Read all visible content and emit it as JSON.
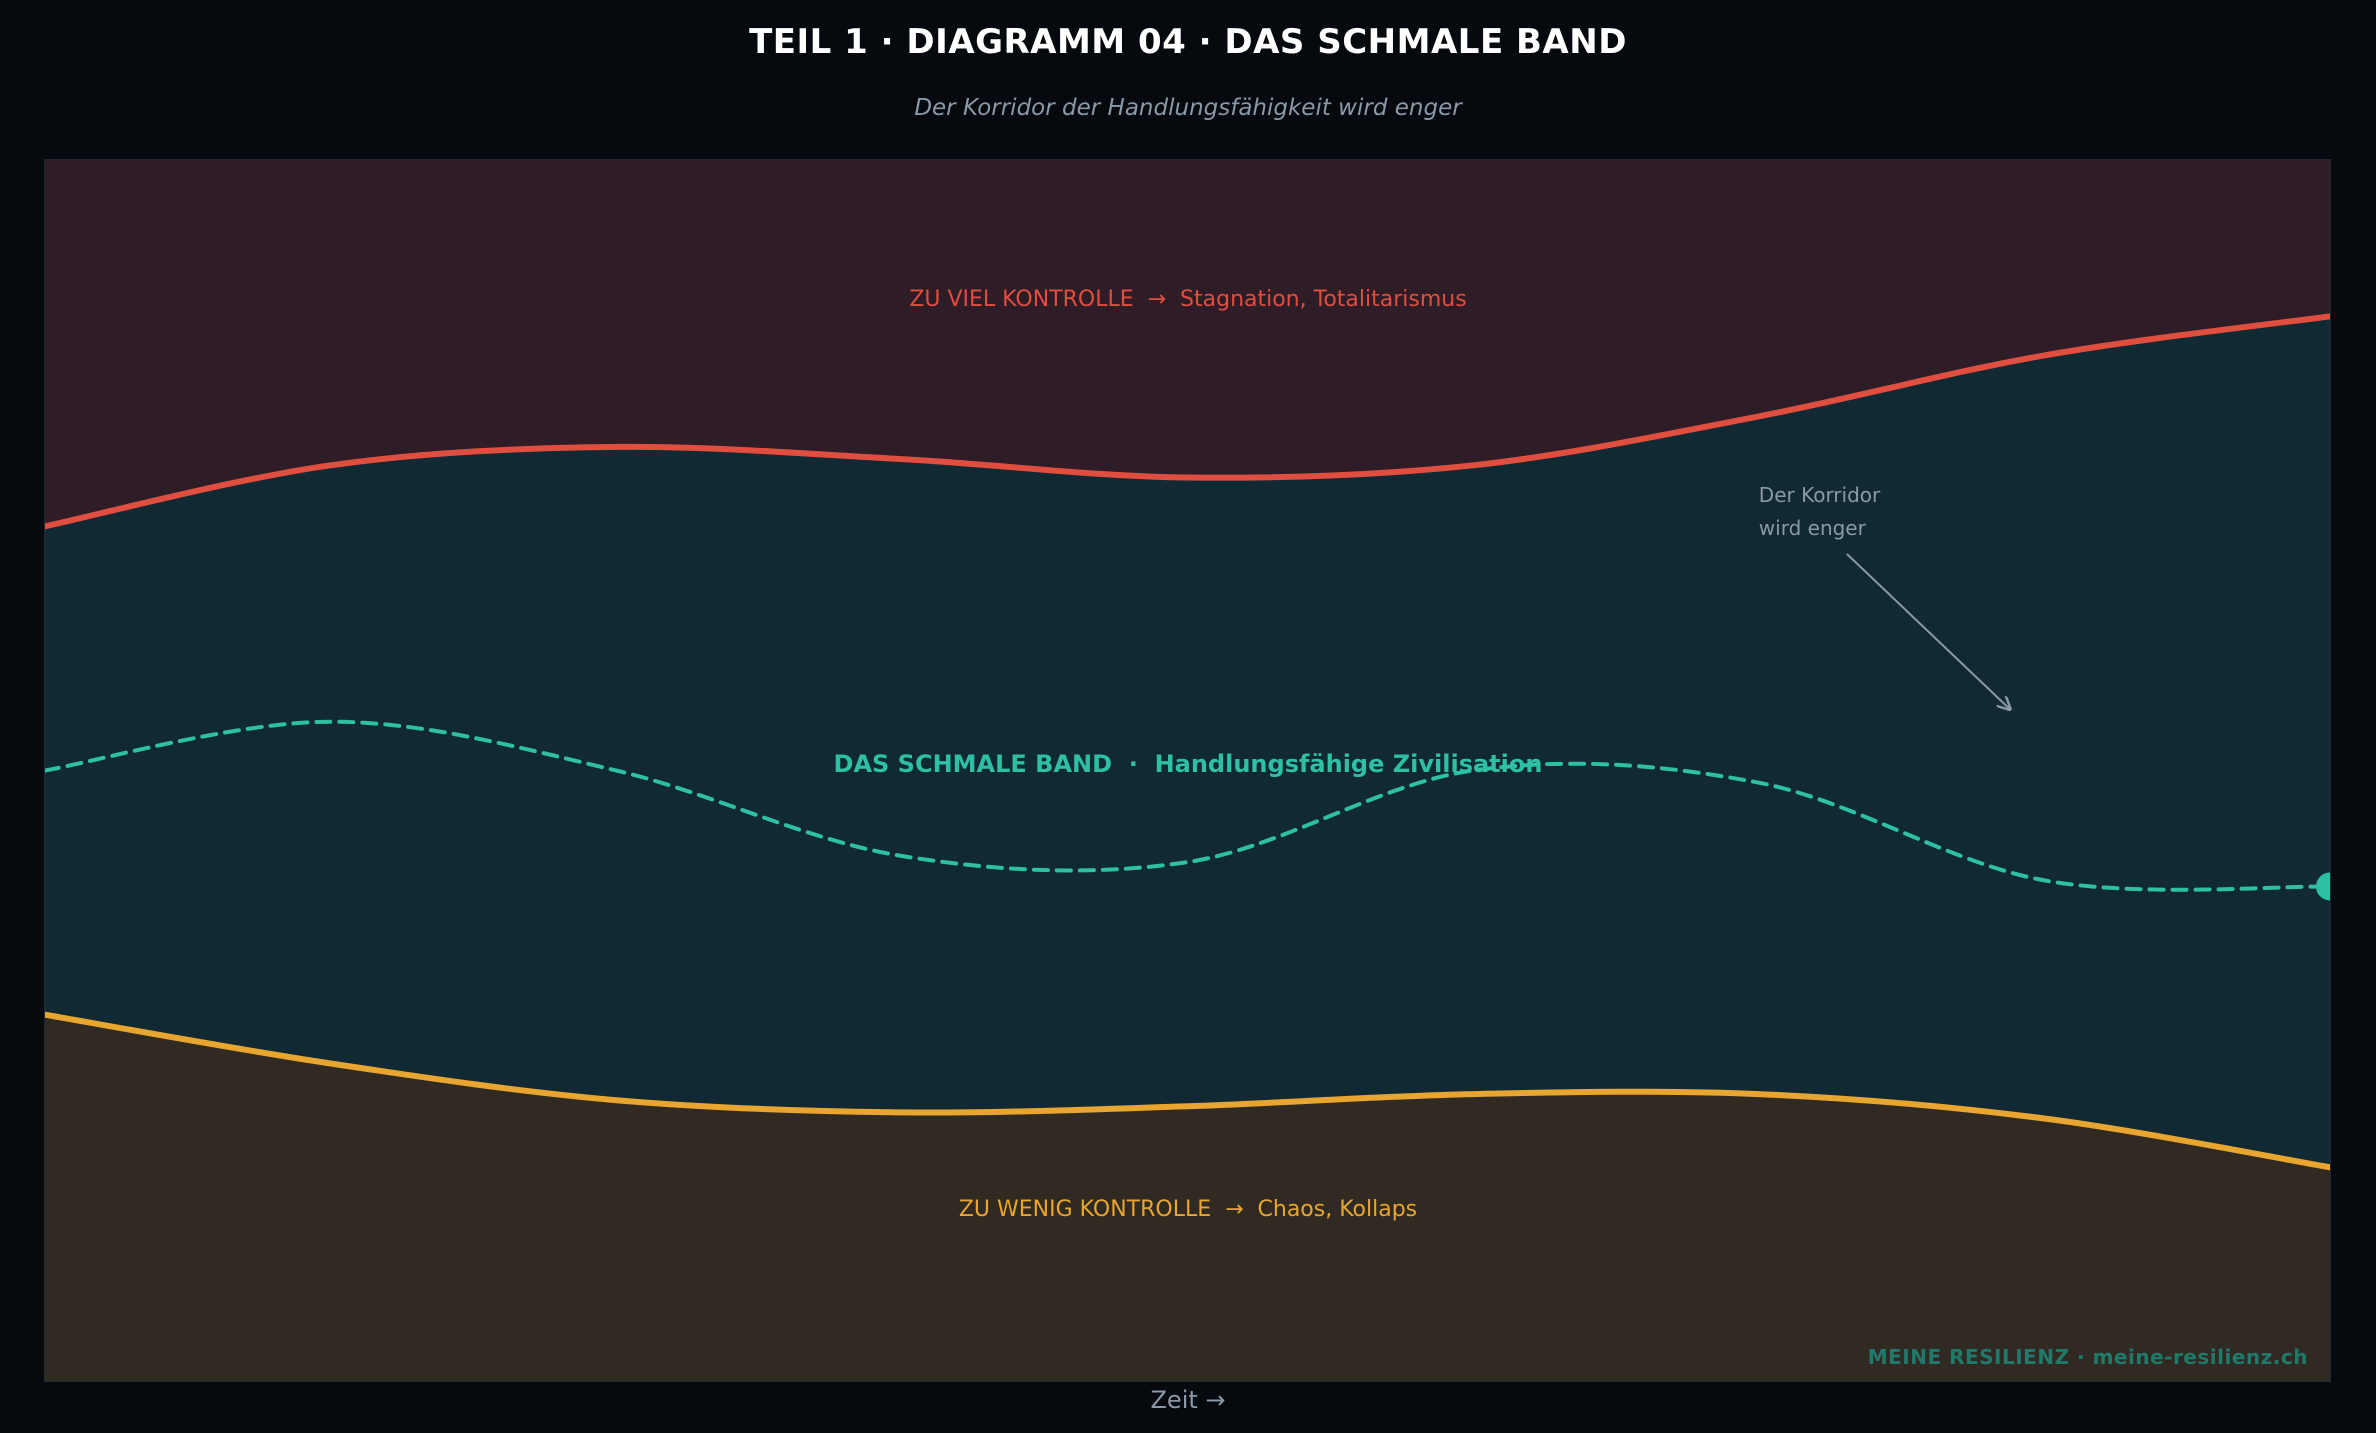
{
  "header": {
    "title": "TEIL 1 · DIAGRAMM 04  ·  DAS SCHMALE BAND",
    "subtitle": "Der Korridor der Handlungsfähigkeit wird enger"
  },
  "footer": {
    "brand": "MEINE RESILIENZ  ·  meine-resilienz.ch"
  },
  "colors": {
    "background": "#060a0e",
    "upper_zone": "#2e1c26",
    "band_zone": "#112933",
    "lower_zone": "#302a23",
    "upper_line": "#e04e3f",
    "lower_line": "#e8a52f",
    "path_line": "#2ebfa5",
    "annotation": "#8a98a8"
  },
  "chart_data": {
    "type": "line",
    "xlabel": "Zeit  →",
    "ylabel": "",
    "xlim": [
      0,
      10
    ],
    "ylim": [
      0,
      10
    ],
    "grid": false,
    "zones": [
      {
        "name": "ZU VIEL KONTROLLE  →  Stagnation, Totalitarismus",
        "position": "top",
        "color": "#e04e3f"
      },
      {
        "name": "DAS SCHMALE BAND  ·  Handlungsfähige Zivilisation",
        "position": "middle",
        "color": "#2ebfa5"
      },
      {
        "name": "ZU WENIG KONTROLLE  →  Chaos, Kollaps",
        "position": "bottom",
        "color": "#e8a52f"
      }
    ],
    "x": [
      0,
      1.25,
      2.5,
      3.75,
      5,
      6.25,
      7.5,
      8.75,
      10
    ],
    "series": [
      {
        "key": "upper",
        "style": "solid",
        "values": [
          7.0,
          7.5,
          7.65,
          7.55,
          7.4,
          7.5,
          7.9,
          8.4,
          8.72
        ]
      },
      {
        "key": "path",
        "style": "dashed",
        "values": [
          5.0,
          5.4,
          5.0,
          4.3,
          4.25,
          5.0,
          4.9,
          4.1,
          4.05
        ],
        "end_marker": true
      },
      {
        "key": "lower",
        "style": "solid",
        "values": [
          3.0,
          2.6,
          2.3,
          2.2,
          2.25,
          2.35,
          2.35,
          2.15,
          1.75
        ]
      }
    ],
    "annotation": {
      "lines": [
        "Der Korridor",
        "wird enger"
      ],
      "text_at": [
        7.5,
        7.2
      ],
      "arrow_to": [
        8.6,
        5.5
      ]
    }
  }
}
